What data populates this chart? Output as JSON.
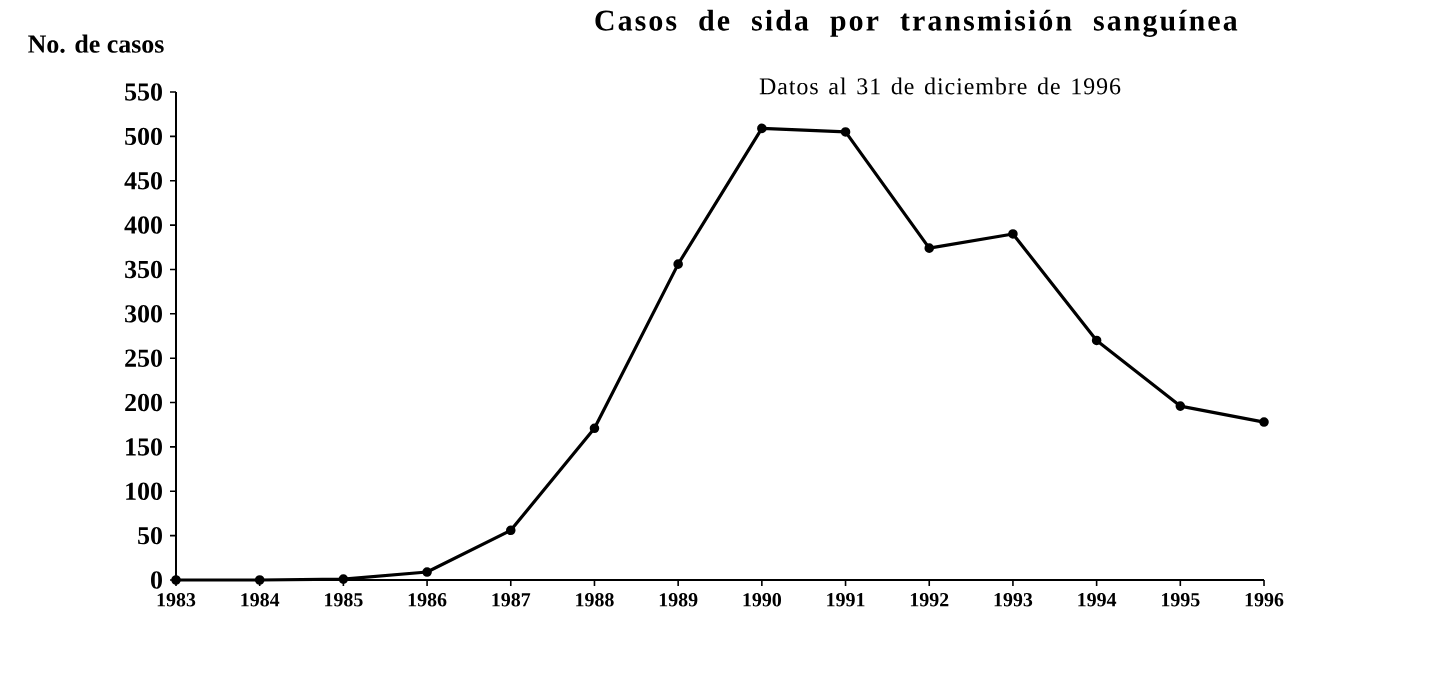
{
  "chart_data": {
    "type": "line",
    "title": "Casos de sida por transmisión sanguínea",
    "subtitle": "Datos al 31 de diciembre de 1996",
    "ylabel": "No. de casos",
    "x": [
      1983,
      1984,
      1985,
      1986,
      1987,
      1988,
      1989,
      1990,
      1991,
      1992,
      1993,
      1994,
      1995,
      1996
    ],
    "series": [
      {
        "color": "#000000",
        "values": [
          0,
          0,
          1,
          9,
          56,
          171,
          356,
          509,
          505,
          374,
          390,
          270,
          196,
          178
        ]
      }
    ],
    "xlim": [
      1983,
      1996
    ],
    "xticks": [
      1983,
      1984,
      1985,
      1986,
      1987,
      1988,
      1989,
      1990,
      1991,
      1992,
      1993,
      1994,
      1995,
      1996
    ],
    "ylim": [
      0,
      550
    ],
    "yticks": [
      0,
      50,
      100,
      150,
      200,
      250,
      300,
      350,
      400,
      450,
      500,
      550
    ],
    "grid": false,
    "marker": "circle",
    "line_style": "solid"
  }
}
